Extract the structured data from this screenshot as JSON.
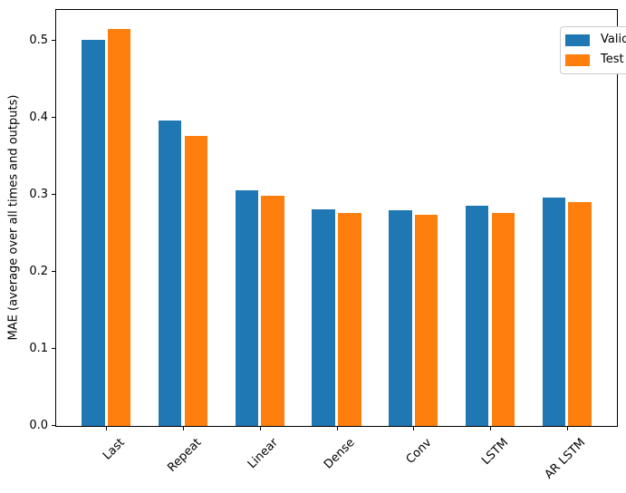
{
  "chart_data": {
    "type": "bar",
    "title": "",
    "xlabel": "",
    "ylabel": "MAE (average over all times and outputs)",
    "categories": [
      "Last",
      "Repeat",
      "Linear",
      "Dense",
      "Conv",
      "LSTM",
      "AR LSTM"
    ],
    "series": [
      {
        "name": "Validation",
        "color": "#1f77b4",
        "values": [
          0.501,
          0.396,
          0.306,
          0.281,
          0.28,
          0.286,
          0.297
        ]
      },
      {
        "name": "Test",
        "color": "#ff7f0e",
        "values": [
          0.515,
          0.377,
          0.299,
          0.277,
          0.274,
          0.277,
          0.291
        ]
      }
    ],
    "yticks": [
      {
        "v": 0.0,
        "label": "0.0"
      },
      {
        "v": 0.1,
        "label": "0.1"
      },
      {
        "v": 0.2,
        "label": "0.2"
      },
      {
        "v": 0.3,
        "label": "0.3"
      },
      {
        "v": 0.4,
        "label": "0.4"
      },
      {
        "v": 0.5,
        "label": "0.5"
      }
    ],
    "ylim": [
      0,
      0.54
    ],
    "x_tick_rotation": 45,
    "bar_width_units": 0.3,
    "bar_offset_units": 0.17,
    "xlim": [
      -0.652,
      6.652
    ],
    "grid": false,
    "legend_position": "upper right",
    "colors": {
      "spine": "#000000",
      "legend_border": "#cccccc",
      "background": "#ffffff"
    }
  }
}
